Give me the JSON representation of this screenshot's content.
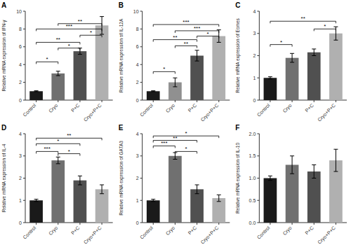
{
  "chart_data": [
    {
      "type": "bar",
      "title": "A",
      "ylabel": "Relative mRNA expression of IFN-γ",
      "categories": [
        "Control",
        "Cryo",
        "P+C",
        "Cryo+P+C"
      ],
      "values": [
        1.0,
        3.0,
        5.5,
        8.4
      ],
      "errors": [
        0.05,
        0.25,
        0.35,
        1.0
      ],
      "colors": [
        "#1a1a1a",
        "#707070",
        "#505050",
        "#b0b0b0"
      ],
      "ylim": [
        0,
        10
      ],
      "yticks": [
        0,
        2,
        4,
        6,
        8,
        10
      ],
      "grid": false,
      "annotations": [
        {
          "from": "Control",
          "to": "Cryo",
          "y": 4.3,
          "label": "*"
        },
        {
          "from": "Control",
          "to": "P+C",
          "y": 6.5,
          "label": "**"
        },
        {
          "from": "Cryo",
          "to": "P+C",
          "y": 5.85,
          "label": "*"
        },
        {
          "from": "Control",
          "to": "Cryo+P+C",
          "y": 8.0,
          "label": "***"
        },
        {
          "from": "Cryo",
          "to": "Cryo+P+C",
          "y": 8.6,
          "label": "**"
        },
        {
          "from": "P+C",
          "to": "Cryo+P+C",
          "y": 7.3,
          "label": "*"
        }
      ]
    },
    {
      "type": "bar",
      "title": "B",
      "ylabel": "Relative mRNA expression of IL-12A",
      "categories": [
        "Control",
        "Cryo",
        "P+C",
        "Cryo+P+C"
      ],
      "values": [
        1.0,
        2.0,
        5.0,
        7.2
      ],
      "errors": [
        0.05,
        0.5,
        0.6,
        0.7
      ],
      "colors": [
        "#1a1a1a",
        "#909090",
        "#505050",
        "#b0b0b0"
      ],
      "ylim": [
        0,
        10
      ],
      "yticks": [
        0,
        2,
        4,
        6,
        8,
        10
      ],
      "grid": false,
      "annotations": [
        {
          "from": "Control",
          "to": "Cryo",
          "y": 3.2,
          "label": "*"
        },
        {
          "from": "Control",
          "to": "P+C",
          "y": 6.8,
          "label": "**"
        },
        {
          "from": "Cryo",
          "to": "P+C",
          "y": 6.1,
          "label": "**"
        },
        {
          "from": "Control",
          "to": "Cryo+P+C",
          "y": 8.5,
          "label": "***"
        },
        {
          "from": "Cryo",
          "to": "Cryo+P+C",
          "y": 7.8,
          "label": "***"
        },
        {
          "from": "P+C",
          "to": "Cryo+P+C",
          "y": 7.2,
          "label": "*"
        }
      ]
    },
    {
      "type": "bar",
      "title": "C",
      "ylabel": "Relative mRNA expression of Eomes",
      "categories": [
        "Control",
        "Cryo",
        "P+C",
        "Cryo+P+C"
      ],
      "values": [
        1.0,
        1.9,
        2.15,
        3.0
      ],
      "errors": [
        0.05,
        0.2,
        0.15,
        0.3
      ],
      "colors": [
        "#1a1a1a",
        "#707070",
        "#505050",
        "#b0b0b0"
      ],
      "ylim": [
        0,
        4
      ],
      "yticks": [
        0,
        1,
        2,
        3,
        4
      ],
      "grid": false,
      "annotations": [
        {
          "from": "Control",
          "to": "Cryo",
          "y": 2.5,
          "label": "*"
        },
        {
          "from": "Control",
          "to": "Cryo+P+C",
          "y": 3.55,
          "label": "**"
        },
        {
          "from": "P+C",
          "to": "Cryo+P+C",
          "y": 3.2,
          "label": "*"
        }
      ]
    },
    {
      "type": "bar",
      "title": "D",
      "ylabel": "Relative mRNA expression of IL-4",
      "categories": [
        "Control",
        "Cryo",
        "P+C",
        "Cryo+P+C"
      ],
      "values": [
        1.0,
        2.8,
        1.9,
        1.5
      ],
      "errors": [
        0.05,
        0.15,
        0.2,
        0.2
      ],
      "colors": [
        "#1a1a1a",
        "#707070",
        "#505050",
        "#b0b0b0"
      ],
      "ylim": [
        0,
        4
      ],
      "yticks": [
        0,
        1,
        2,
        3,
        4
      ],
      "grid": false,
      "annotations": [
        {
          "from": "Control",
          "to": "Cryo",
          "y": 3.2,
          "label": "***"
        },
        {
          "from": "Control",
          "to": "P+C",
          "y": 3.55,
          "label": "*"
        },
        {
          "from": "Control",
          "to": "Cryo+P+C",
          "y": 3.8,
          "label": "**"
        },
        {
          "from": "Cryo",
          "to": "P+C",
          "y": 3.1,
          "label": "*"
        }
      ]
    },
    {
      "type": "bar",
      "title": "E",
      "ylabel": "Relative mRNA expression of GATA3",
      "categories": [
        "Control",
        "Cryo",
        "P+C",
        "Cryo+P+C"
      ],
      "values": [
        1.0,
        3.0,
        1.5,
        1.1
      ],
      "errors": [
        0.05,
        0.15,
        0.2,
        0.15
      ],
      "colors": [
        "#1a1a1a",
        "#707070",
        "#505050",
        "#b0b0b0"
      ],
      "ylim": [
        0,
        4
      ],
      "yticks": [
        0,
        1,
        2,
        3,
        4
      ],
      "grid": false,
      "annotations": [
        {
          "from": "Control",
          "to": "Cryo",
          "y": 3.45,
          "label": "***"
        },
        {
          "from": "Control",
          "to": "P+C",
          "y": 3.7,
          "label": "**"
        },
        {
          "from": "Control",
          "to": "Cryo+P+C",
          "y": 3.9,
          "label": "*"
        },
        {
          "from": "Cryo",
          "to": "P+C",
          "y": 3.2,
          "label": "*"
        }
      ]
    },
    {
      "type": "bar",
      "title": "F",
      "ylabel": "Relative mRNA expression of IL-10",
      "categories": [
        "Control",
        "Cryo",
        "P+C",
        "Cryo+P+C"
      ],
      "values": [
        1.0,
        1.3,
        1.15,
        1.4
      ],
      "errors": [
        0.05,
        0.2,
        0.15,
        0.25
      ],
      "colors": [
        "#1a1a1a",
        "#707070",
        "#505050",
        "#b0b0b0"
      ],
      "ylim": [
        0,
        2.0
      ],
      "yticks": [
        {
          "value": 0,
          "label": "0.0"
        },
        0.5,
        {
          "value": 1.0,
          "label": "1.0"
        },
        1.5,
        {
          "value": 2.0,
          "label": "2.0"
        }
      ],
      "grid": false,
      "annotations": []
    }
  ]
}
